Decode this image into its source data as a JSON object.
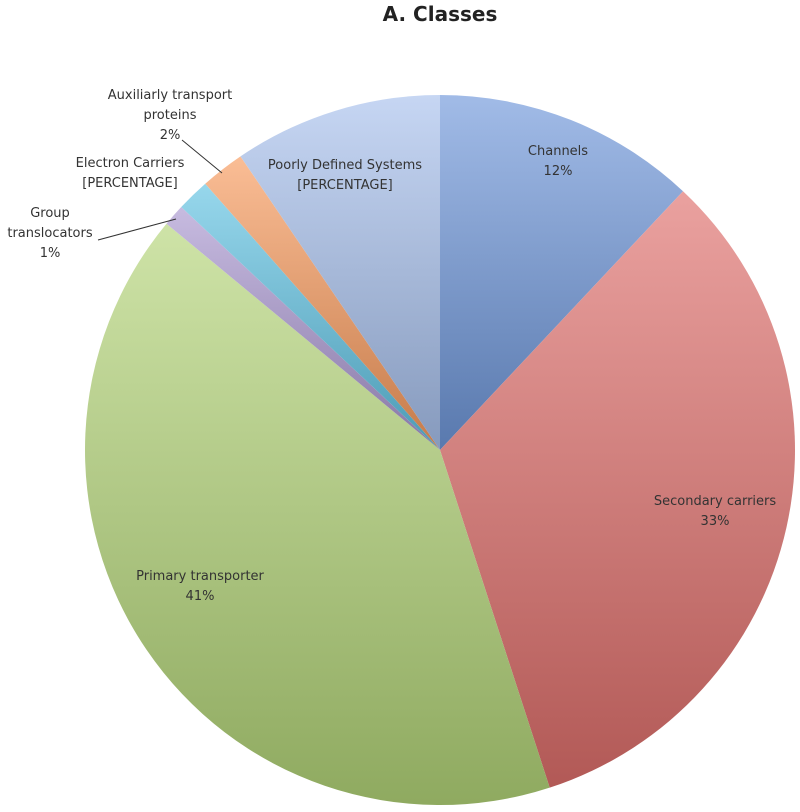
{
  "chart_data": {
    "type": "pie",
    "title": "A. Classes",
    "categories": [
      "Channels",
      "Secondary carriers",
      "Primary transporter",
      "Group translocators",
      "Electron Carriers",
      "Auxiliarly transport proteins",
      "Poorly Defined Systems"
    ],
    "values": [
      12,
      33,
      41,
      1,
      1.5,
      2,
      9.5
    ],
    "value_labels": [
      "12%",
      "33%",
      "41%",
      "1%",
      "[PERCENTAGE]",
      "2%",
      "[PERCENTAGE]"
    ],
    "colors": [
      "#6f97da",
      "#de6f6b",
      "#b3d478",
      "#a996d0",
      "#5fc2e2",
      "#f79a5c",
      "#a8c0ec"
    ]
  }
}
